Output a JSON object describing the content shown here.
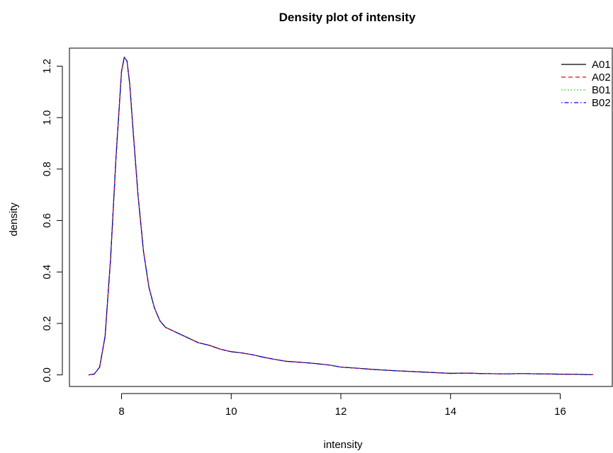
{
  "chart_data": {
    "type": "line",
    "title": "Density plot of intensity",
    "xlabel": "intensity",
    "ylabel": "density",
    "xlim": [
      7.05,
      16.95
    ],
    "ylim": [
      -0.045,
      1.27
    ],
    "x_ticks": [
      8,
      10,
      12,
      14,
      16
    ],
    "y_ticks": [
      0.0,
      0.2,
      0.4,
      0.6,
      0.8,
      1.0,
      1.2
    ],
    "x_tick_labels": [
      "8",
      "10",
      "12",
      "14",
      "16"
    ],
    "y_tick_labels": [
      "0.0",
      "0.2",
      "0.4",
      "0.6",
      "0.8",
      "1.0",
      "1.2"
    ],
    "grid": false,
    "legend_position": "top-right",
    "x": [
      7.4,
      7.5,
      7.6,
      7.7,
      7.8,
      7.9,
      8.0,
      8.05,
      8.1,
      8.15,
      8.2,
      8.3,
      8.4,
      8.5,
      8.6,
      8.7,
      8.8,
      8.9,
      9.0,
      9.2,
      9.4,
      9.6,
      9.8,
      10.0,
      10.2,
      10.4,
      10.6,
      10.8,
      11.0,
      11.2,
      11.5,
      11.8,
      12.0,
      12.3,
      12.6,
      13.0,
      13.3,
      13.6,
      14.0,
      14.3,
      14.6,
      15.0,
      15.3,
      15.6,
      16.0,
      16.3,
      16.6
    ],
    "series": [
      {
        "name": "A01",
        "color": "#000000",
        "dash": "solid",
        "values": [
          0.0,
          0.003,
          0.03,
          0.15,
          0.45,
          0.85,
          1.18,
          1.235,
          1.22,
          1.13,
          0.98,
          0.7,
          0.48,
          0.34,
          0.26,
          0.21,
          0.185,
          0.175,
          0.165,
          0.145,
          0.125,
          0.115,
          0.1,
          0.09,
          0.085,
          0.078,
          0.068,
          0.06,
          0.053,
          0.05,
          0.045,
          0.038,
          0.03,
          0.026,
          0.021,
          0.016,
          0.013,
          0.01,
          0.006,
          0.007,
          0.005,
          0.004,
          0.005,
          0.004,
          0.003,
          0.002,
          0.001
        ]
      },
      {
        "name": "A02",
        "color": "#ff0000",
        "dash": "dashed",
        "values": [
          0.0,
          0.003,
          0.03,
          0.15,
          0.45,
          0.85,
          1.18,
          1.235,
          1.22,
          1.13,
          0.98,
          0.7,
          0.48,
          0.34,
          0.26,
          0.21,
          0.185,
          0.175,
          0.165,
          0.145,
          0.125,
          0.115,
          0.1,
          0.09,
          0.085,
          0.078,
          0.068,
          0.06,
          0.053,
          0.05,
          0.045,
          0.038,
          0.03,
          0.026,
          0.021,
          0.016,
          0.013,
          0.01,
          0.006,
          0.007,
          0.005,
          0.004,
          0.005,
          0.004,
          0.003,
          0.002,
          0.001
        ]
      },
      {
        "name": "B01",
        "color": "#00cd00",
        "dash": "dotted",
        "values": [
          0.0,
          0.003,
          0.03,
          0.15,
          0.45,
          0.85,
          1.18,
          1.235,
          1.22,
          1.13,
          0.98,
          0.7,
          0.48,
          0.34,
          0.26,
          0.21,
          0.185,
          0.175,
          0.165,
          0.145,
          0.125,
          0.115,
          0.1,
          0.09,
          0.085,
          0.078,
          0.068,
          0.06,
          0.053,
          0.05,
          0.045,
          0.038,
          0.03,
          0.026,
          0.021,
          0.016,
          0.013,
          0.01,
          0.006,
          0.007,
          0.005,
          0.004,
          0.005,
          0.004,
          0.003,
          0.002,
          0.001
        ]
      },
      {
        "name": "B02",
        "color": "#0000ff",
        "dash": "dotdash",
        "values": [
          0.0,
          0.003,
          0.03,
          0.15,
          0.45,
          0.85,
          1.18,
          1.235,
          1.22,
          1.13,
          0.98,
          0.7,
          0.48,
          0.34,
          0.26,
          0.21,
          0.185,
          0.175,
          0.165,
          0.145,
          0.125,
          0.115,
          0.1,
          0.09,
          0.085,
          0.078,
          0.068,
          0.06,
          0.053,
          0.05,
          0.045,
          0.038,
          0.03,
          0.026,
          0.021,
          0.016,
          0.013,
          0.01,
          0.006,
          0.007,
          0.005,
          0.004,
          0.005,
          0.004,
          0.003,
          0.002,
          0.001
        ]
      }
    ]
  }
}
